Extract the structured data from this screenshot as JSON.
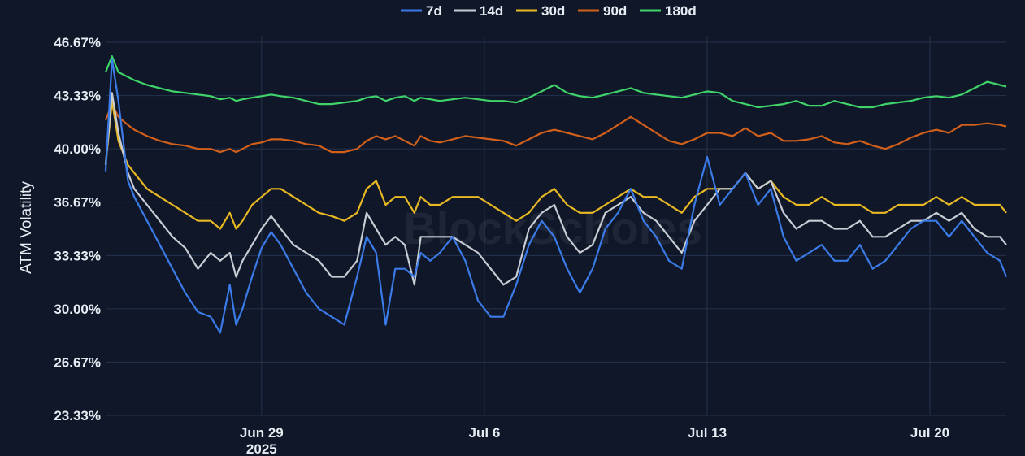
{
  "watermark": "BlockScholes",
  "chart_data": {
    "type": "line",
    "title": "",
    "xlabel": "",
    "ylabel": "ATM Volatility",
    "ylim": [
      23.33,
      46.67
    ],
    "yticks": [
      "46.67%",
      "43.33%",
      "40.00%",
      "36.67%",
      "33.33%",
      "30.00%",
      "26.67%",
      "23.33%"
    ],
    "ytick_values": [
      46.67,
      43.33,
      40.0,
      36.67,
      33.33,
      30.0,
      26.67,
      23.33
    ],
    "xlim": [
      -4.9,
      23.4
    ],
    "xticks": [
      {
        "label": "Jun 29",
        "sub": "2025",
        "x": 0
      },
      {
        "label": "Jul 6",
        "sub": "",
        "x": 7
      },
      {
        "label": "Jul 13",
        "sub": "",
        "x": 14
      },
      {
        "label": "Jul 20",
        "sub": "",
        "x": 21
      }
    ],
    "x_unit_note": "",
    "grid": true,
    "legend_position": "top-center",
    "series": [
      {
        "name": "7d",
        "color": "#3b7be8",
        "x": [
          -4.9,
          -4.7,
          -4.5,
          -4.2,
          -4.0,
          -3.6,
          -3.2,
          -2.8,
          -2.4,
          -2.0,
          -1.6,
          -1.3,
          -1.0,
          -0.8,
          -0.6,
          -0.3,
          0.0,
          0.3,
          0.6,
          1.0,
          1.4,
          1.8,
          2.2,
          2.6,
          3.0,
          3.3,
          3.6,
          3.9,
          4.2,
          4.5,
          4.8,
          5.0,
          5.3,
          5.6,
          6.0,
          6.4,
          6.8,
          7.2,
          7.6,
          8.0,
          8.4,
          8.8,
          9.2,
          9.6,
          10.0,
          10.4,
          10.8,
          11.2,
          11.6,
          12.0,
          12.4,
          12.8,
          13.2,
          13.6,
          14.0,
          14.4,
          14.8,
          15.2,
          15.6,
          16.0,
          16.4,
          16.8,
          17.2,
          17.6,
          18.0,
          18.4,
          18.8,
          19.2,
          19.6,
          20.0,
          20.4,
          20.8,
          21.2,
          21.6,
          22.0,
          22.4,
          22.8,
          23.2,
          23.4
        ],
        "values": [
          38.6,
          45.6,
          43.0,
          38.0,
          37.0,
          35.5,
          34.0,
          32.5,
          31.0,
          29.8,
          29.5,
          28.5,
          31.5,
          29.0,
          30.0,
          32.0,
          33.8,
          34.8,
          34.0,
          32.5,
          31.0,
          30.0,
          29.5,
          29.0,
          32.0,
          34.5,
          33.5,
          29.0,
          32.5,
          32.5,
          32.0,
          33.5,
          33.0,
          33.5,
          34.5,
          33.0,
          30.5,
          29.5,
          29.5,
          31.5,
          34.0,
          35.5,
          34.5,
          32.5,
          31.0,
          32.5,
          35.0,
          36.0,
          37.5,
          35.5,
          34.5,
          33.0,
          32.5,
          36.5,
          39.5,
          36.5,
          37.5,
          38.5,
          36.5,
          37.5,
          34.5,
          33.0,
          33.5,
          34.0,
          33.0,
          33.0,
          34.0,
          32.5,
          33.0,
          34.0,
          35.0,
          35.5,
          35.5,
          34.5,
          35.5,
          34.5,
          33.5,
          33.0,
          32.0
        ]
      },
      {
        "name": "14d",
        "color": "#c8ccd4",
        "x": [
          -4.9,
          -4.7,
          -4.5,
          -4.2,
          -4.0,
          -3.6,
          -3.2,
          -2.8,
          -2.4,
          -2.0,
          -1.6,
          -1.3,
          -1.0,
          -0.8,
          -0.6,
          -0.3,
          0.0,
          0.3,
          0.6,
          1.0,
          1.4,
          1.8,
          2.2,
          2.6,
          3.0,
          3.3,
          3.6,
          3.9,
          4.2,
          4.5,
          4.8,
          5.0,
          5.3,
          5.6,
          6.0,
          6.4,
          6.8,
          7.2,
          7.6,
          8.0,
          8.4,
          8.8,
          9.2,
          9.6,
          10.0,
          10.4,
          10.8,
          11.2,
          11.6,
          12.0,
          12.4,
          12.8,
          13.2,
          13.6,
          14.0,
          14.4,
          14.8,
          15.2,
          15.6,
          16.0,
          16.4,
          16.8,
          17.2,
          17.6,
          18.0,
          18.4,
          18.8,
          19.2,
          19.6,
          20.0,
          20.4,
          20.8,
          21.2,
          21.6,
          22.0,
          22.4,
          22.8,
          23.2,
          23.4
        ],
        "values": [
          39.0,
          43.5,
          41.0,
          38.5,
          37.5,
          36.5,
          35.5,
          34.5,
          33.8,
          32.5,
          33.5,
          33.0,
          33.5,
          32.0,
          33.0,
          34.0,
          35.0,
          35.8,
          35.0,
          34.0,
          33.5,
          33.0,
          32.0,
          32.0,
          33.0,
          36.0,
          35.0,
          34.0,
          34.5,
          34.0,
          31.5,
          34.5,
          34.5,
          34.5,
          34.5,
          34.0,
          33.5,
          32.5,
          31.5,
          32.0,
          35.0,
          36.0,
          36.5,
          34.5,
          33.5,
          34.0,
          36.0,
          36.5,
          37.0,
          36.0,
          35.5,
          34.5,
          33.5,
          35.5,
          36.5,
          37.5,
          37.5,
          38.5,
          37.5,
          38.0,
          36.0,
          35.0,
          35.5,
          35.5,
          35.0,
          35.0,
          35.5,
          34.5,
          34.5,
          35.0,
          35.5,
          35.5,
          36.0,
          35.5,
          36.0,
          35.0,
          34.5,
          34.5,
          34.0
        ]
      },
      {
        "name": "30d",
        "color": "#e8b923",
        "x": [
          -4.9,
          -4.7,
          -4.5,
          -4.2,
          -4.0,
          -3.6,
          -3.2,
          -2.8,
          -2.4,
          -2.0,
          -1.6,
          -1.3,
          -1.0,
          -0.8,
          -0.6,
          -0.3,
          0.0,
          0.3,
          0.6,
          1.0,
          1.4,
          1.8,
          2.2,
          2.6,
          3.0,
          3.3,
          3.6,
          3.9,
          4.2,
          4.5,
          4.8,
          5.0,
          5.3,
          5.6,
          6.0,
          6.4,
          6.8,
          7.2,
          7.6,
          8.0,
          8.4,
          8.8,
          9.2,
          9.6,
          10.0,
          10.4,
          10.8,
          11.2,
          11.6,
          12.0,
          12.4,
          12.8,
          13.2,
          13.6,
          14.0,
          14.4,
          14.8,
          15.2,
          15.6,
          16.0,
          16.4,
          16.8,
          17.2,
          17.6,
          18.0,
          18.4,
          18.8,
          19.2,
          19.6,
          20.0,
          20.4,
          20.8,
          21.2,
          21.6,
          22.0,
          22.4,
          22.8,
          23.2,
          23.4
        ],
        "values": [
          39.0,
          43.0,
          40.5,
          39.0,
          38.5,
          37.5,
          37.0,
          36.5,
          36.0,
          35.5,
          35.5,
          35.0,
          36.0,
          35.0,
          35.5,
          36.5,
          37.0,
          37.5,
          37.5,
          37.0,
          36.5,
          36.0,
          35.8,
          35.5,
          36.0,
          37.5,
          38.0,
          36.5,
          37.0,
          37.0,
          36.0,
          37.0,
          36.5,
          36.5,
          37.0,
          37.0,
          37.0,
          36.5,
          36.0,
          35.5,
          36.0,
          37.0,
          37.5,
          36.5,
          36.0,
          36.0,
          36.5,
          37.0,
          37.5,
          37.0,
          37.0,
          36.5,
          36.0,
          37.0,
          37.5,
          37.5,
          37.5,
          38.5,
          37.5,
          38.0,
          37.0,
          36.5,
          36.5,
          37.0,
          36.5,
          36.5,
          36.5,
          36.0,
          36.0,
          36.5,
          36.5,
          36.5,
          37.0,
          36.5,
          37.0,
          36.5,
          36.5,
          36.5,
          36.0
        ]
      },
      {
        "name": "90d",
        "color": "#d2601a",
        "x": [
          -4.9,
          -4.7,
          -4.5,
          -4.2,
          -4.0,
          -3.6,
          -3.2,
          -2.8,
          -2.4,
          -2.0,
          -1.6,
          -1.3,
          -1.0,
          -0.8,
          -0.6,
          -0.3,
          0.0,
          0.3,
          0.6,
          1.0,
          1.4,
          1.8,
          2.2,
          2.6,
          3.0,
          3.3,
          3.6,
          3.9,
          4.2,
          4.5,
          4.8,
          5.0,
          5.3,
          5.6,
          6.0,
          6.4,
          6.8,
          7.2,
          7.6,
          8.0,
          8.4,
          8.8,
          9.2,
          9.6,
          10.0,
          10.4,
          10.8,
          11.2,
          11.6,
          12.0,
          12.4,
          12.8,
          13.2,
          13.6,
          14.0,
          14.4,
          14.8,
          15.2,
          15.6,
          16.0,
          16.4,
          16.8,
          17.2,
          17.6,
          18.0,
          18.4,
          18.8,
          19.2,
          19.6,
          20.0,
          20.4,
          20.8,
          21.2,
          21.6,
          22.0,
          22.4,
          22.8,
          23.2,
          23.4
        ],
        "values": [
          41.8,
          42.8,
          42.0,
          41.5,
          41.2,
          40.8,
          40.5,
          40.3,
          40.2,
          40.0,
          40.0,
          39.8,
          40.0,
          39.8,
          40.0,
          40.3,
          40.4,
          40.6,
          40.6,
          40.5,
          40.3,
          40.2,
          39.8,
          39.8,
          40.0,
          40.5,
          40.8,
          40.6,
          40.8,
          40.5,
          40.2,
          40.8,
          40.5,
          40.4,
          40.6,
          40.8,
          40.7,
          40.6,
          40.5,
          40.2,
          40.6,
          41.0,
          41.2,
          41.0,
          40.8,
          40.6,
          41.0,
          41.5,
          42.0,
          41.5,
          41.0,
          40.5,
          40.3,
          40.6,
          41.0,
          41.0,
          40.8,
          41.3,
          40.8,
          41.0,
          40.5,
          40.5,
          40.6,
          40.8,
          40.4,
          40.3,
          40.5,
          40.2,
          40.0,
          40.3,
          40.7,
          41.0,
          41.2,
          41.0,
          41.5,
          41.5,
          41.6,
          41.5,
          41.4
        ]
      },
      {
        "name": "180d",
        "color": "#3fd36a",
        "x": [
          -4.9,
          -4.7,
          -4.5,
          -4.2,
          -4.0,
          -3.6,
          -3.2,
          -2.8,
          -2.4,
          -2.0,
          -1.6,
          -1.3,
          -1.0,
          -0.8,
          -0.6,
          -0.3,
          0.0,
          0.3,
          0.6,
          1.0,
          1.4,
          1.8,
          2.2,
          2.6,
          3.0,
          3.3,
          3.6,
          3.9,
          4.2,
          4.5,
          4.8,
          5.0,
          5.3,
          5.6,
          6.0,
          6.4,
          6.8,
          7.2,
          7.6,
          8.0,
          8.4,
          8.8,
          9.2,
          9.6,
          10.0,
          10.4,
          10.8,
          11.2,
          11.6,
          12.0,
          12.4,
          12.8,
          13.2,
          13.6,
          14.0,
          14.4,
          14.8,
          15.2,
          15.6,
          16.0,
          16.4,
          16.8,
          17.2,
          17.6,
          18.0,
          18.4,
          18.8,
          19.2,
          19.6,
          20.0,
          20.4,
          20.8,
          21.2,
          21.6,
          22.0,
          22.4,
          22.8,
          23.2,
          23.4
        ],
        "values": [
          44.8,
          45.8,
          44.8,
          44.5,
          44.3,
          44.0,
          43.8,
          43.6,
          43.5,
          43.4,
          43.3,
          43.1,
          43.2,
          43.0,
          43.1,
          43.2,
          43.3,
          43.4,
          43.3,
          43.2,
          43.0,
          42.8,
          42.8,
          42.9,
          43.0,
          43.2,
          43.3,
          43.0,
          43.2,
          43.3,
          43.0,
          43.2,
          43.1,
          43.0,
          43.1,
          43.2,
          43.1,
          43.0,
          43.0,
          42.9,
          43.2,
          43.6,
          44.0,
          43.5,
          43.3,
          43.2,
          43.4,
          43.6,
          43.8,
          43.5,
          43.4,
          43.3,
          43.2,
          43.4,
          43.6,
          43.5,
          43.0,
          42.8,
          42.6,
          42.7,
          42.8,
          43.0,
          42.7,
          42.7,
          43.0,
          42.8,
          42.6,
          42.6,
          42.8,
          42.9,
          43.0,
          43.2,
          43.3,
          43.2,
          43.4,
          43.8,
          44.2,
          44.0,
          43.9
        ]
      }
    ]
  }
}
